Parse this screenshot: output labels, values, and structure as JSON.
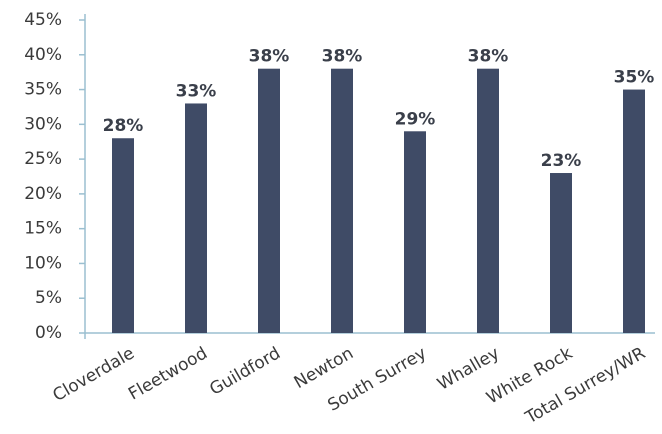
{
  "chart_data": {
    "type": "bar",
    "categories": [
      "Cloverdale",
      "Fleetwood",
      "Guildford",
      "Newton",
      "South Surrey",
      "Whalley",
      "White Rock",
      "Total Surrey/WR"
    ],
    "values": [
      28,
      33,
      38,
      38,
      29,
      38,
      23,
      35
    ],
    "value_labels": [
      "28%",
      "33%",
      "38%",
      "38%",
      "29%",
      "38%",
      "23%",
      "35%"
    ],
    "color": "#3f4b66",
    "ylim": [
      0,
      45
    ],
    "yticks": [
      {
        "value": 0,
        "label": "0%"
      },
      {
        "value": 5,
        "label": "5%"
      },
      {
        "value": 10,
        "label": "10%"
      },
      {
        "value": 15,
        "label": "15%"
      },
      {
        "value": 20,
        "label": "20%"
      },
      {
        "value": 25,
        "label": "25%"
      },
      {
        "value": 30,
        "label": "30%"
      },
      {
        "value": 35,
        "label": "35%"
      },
      {
        "value": 40,
        "label": "40%"
      },
      {
        "value": 45,
        "label": "45%"
      }
    ],
    "grid": false
  }
}
